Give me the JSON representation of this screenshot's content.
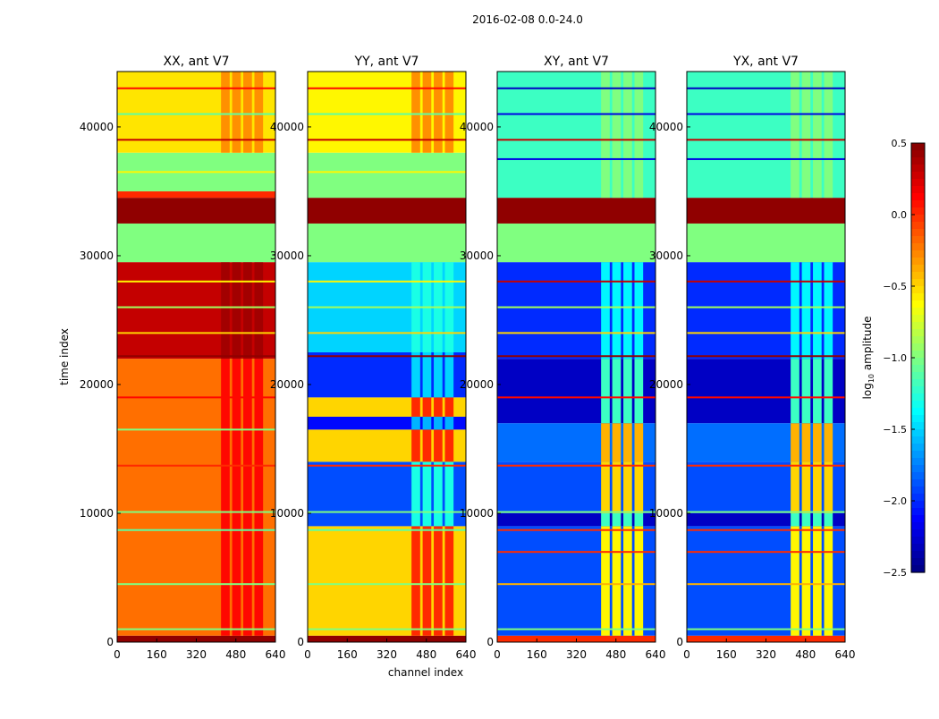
{
  "chart_data": {
    "type": "heatmap",
    "title": "2016-02-08 0.0-24.0",
    "xlabel": "channel index",
    "ylabel": "time index",
    "xlim": [
      0,
      640
    ],
    "ylim": [
      0,
      44300
    ],
    "xticks": [
      "0",
      "160",
      "320",
      "480",
      "640"
    ],
    "yticks": [
      "0",
      "10000",
      "20000",
      "30000",
      "40000"
    ],
    "colorbar": {
      "label_main": "log",
      "label_sub": "10",
      "label_rest": " amplitude",
      "range": [
        -2.5,
        0.5
      ],
      "ticks": [
        "0.5",
        "0.0",
        "−0.5",
        "−1.0",
        "−1.5",
        "−2.0",
        "−2.5"
      ],
      "colormap": "jet"
    },
    "rfi_channels": [
      420,
      600
    ],
    "panels": [
      {
        "title": "XX, ant V7",
        "bands": [
          [
            0,
            500,
            0.45,
            0.45
          ],
          [
            500,
            22000,
            -0.2,
            0.1
          ],
          [
            22000,
            29500,
            0.3,
            0.4
          ],
          [
            29500,
            32500,
            -1.0,
            -1.0
          ],
          [
            32500,
            34500,
            0.45,
            0.45
          ],
          [
            34500,
            35000,
            0.0,
            0.0
          ],
          [
            35000,
            38000,
            -1.0,
            -1.0
          ],
          [
            38000,
            44300,
            -0.55,
            -0.3
          ]
        ],
        "lines": [
          [
            1000,
            -1.0
          ],
          [
            4500,
            -1.0
          ],
          [
            8700,
            -1.1
          ],
          [
            10100,
            -1.0
          ],
          [
            13700,
            0.0
          ],
          [
            16500,
            -1.0
          ],
          [
            19000,
            0.1
          ],
          [
            22200,
            0.45
          ],
          [
            24000,
            -0.5
          ],
          [
            26000,
            -0.9
          ],
          [
            28000,
            -0.6
          ],
          [
            36500,
            -0.6
          ],
          [
            39000,
            0.3
          ],
          [
            41000,
            -1.1
          ],
          [
            43000,
            0.1
          ]
        ]
      },
      {
        "title": "YY, ant V7",
        "bands": [
          [
            0,
            500,
            0.45,
            0.45
          ],
          [
            500,
            9000,
            -0.5,
            0.0
          ],
          [
            9000,
            14000,
            -1.9,
            -1.3
          ],
          [
            14000,
            16500,
            -0.5,
            0.0
          ],
          [
            16500,
            17500,
            -2.1,
            -1.6
          ],
          [
            17500,
            19000,
            -0.5,
            0.0
          ],
          [
            19000,
            22500,
            -2.0,
            -1.5
          ],
          [
            22500,
            29500,
            -1.5,
            -1.3
          ],
          [
            29500,
            32500,
            -1.0,
            -1.0
          ],
          [
            32500,
            34500,
            0.45,
            0.45
          ],
          [
            34500,
            38000,
            -1.0,
            -1.0
          ],
          [
            38000,
            44300,
            -0.6,
            -0.3
          ]
        ],
        "lines": [
          [
            1000,
            -1.0
          ],
          [
            4500,
            -1.0
          ],
          [
            8700,
            -1.1
          ],
          [
            10100,
            -1.0
          ],
          [
            13700,
            0.0
          ],
          [
            22200,
            0.45
          ],
          [
            24000,
            -0.5
          ],
          [
            26000,
            -0.9
          ],
          [
            28000,
            -0.6
          ],
          [
            36500,
            -0.6
          ],
          [
            39000,
            0.3
          ],
          [
            41000,
            -1.1
          ],
          [
            43000,
            0.1
          ]
        ]
      },
      {
        "title": "XY, ant V7",
        "bands": [
          [
            0,
            500,
            0.0,
            0.0
          ],
          [
            500,
            9000,
            -1.9,
            -0.6
          ],
          [
            9000,
            10000,
            -2.3,
            -1.2
          ],
          [
            10000,
            14000,
            -1.9,
            -0.5
          ],
          [
            14000,
            17000,
            -1.8,
            -0.4
          ],
          [
            17000,
            22000,
            -2.3,
            -1.2
          ],
          [
            22000,
            29500,
            -2.0,
            -1.4
          ],
          [
            29500,
            32500,
            -1.0,
            -1.0
          ],
          [
            32500,
            34500,
            0.45,
            0.45
          ],
          [
            34500,
            44300,
            -1.2,
            -1.0
          ]
        ],
        "lines": [
          [
            1000,
            -1.0
          ],
          [
            4500,
            -0.4
          ],
          [
            7000,
            0.0
          ],
          [
            8700,
            0.0
          ],
          [
            10100,
            -1.0
          ],
          [
            13700,
            0.0
          ],
          [
            19000,
            0.1
          ],
          [
            22200,
            0.45
          ],
          [
            24000,
            -0.5
          ],
          [
            26000,
            -0.9
          ],
          [
            28000,
            0.3
          ],
          [
            37500,
            -2.2
          ],
          [
            39000,
            0.3
          ],
          [
            41000,
            -2.2
          ],
          [
            43000,
            -2.3
          ]
        ]
      },
      {
        "title": "YX, ant V7",
        "bands": [
          [
            0,
            500,
            0.0,
            0.0
          ],
          [
            500,
            9000,
            -1.9,
            -0.6
          ],
          [
            9000,
            10000,
            -2.3,
            -1.2
          ],
          [
            10000,
            14000,
            -1.9,
            -0.5
          ],
          [
            14000,
            17000,
            -1.8,
            -0.4
          ],
          [
            17000,
            22000,
            -2.3,
            -1.2
          ],
          [
            22000,
            29500,
            -2.0,
            -1.4
          ],
          [
            29500,
            32500,
            -1.0,
            -1.0
          ],
          [
            32500,
            34500,
            0.45,
            0.45
          ],
          [
            34500,
            44300,
            -1.2,
            -1.0
          ]
        ],
        "lines": [
          [
            1000,
            -1.0
          ],
          [
            4500,
            -0.4
          ],
          [
            7000,
            0.0
          ],
          [
            8700,
            0.0
          ],
          [
            10100,
            -1.0
          ],
          [
            13700,
            0.0
          ],
          [
            19000,
            0.1
          ],
          [
            22200,
            0.45
          ],
          [
            24000,
            -0.5
          ],
          [
            26000,
            -0.9
          ],
          [
            28000,
            0.3
          ],
          [
            37500,
            -2.2
          ],
          [
            39000,
            0.3
          ],
          [
            41000,
            -2.2
          ],
          [
            43000,
            -2.3
          ]
        ]
      }
    ]
  }
}
